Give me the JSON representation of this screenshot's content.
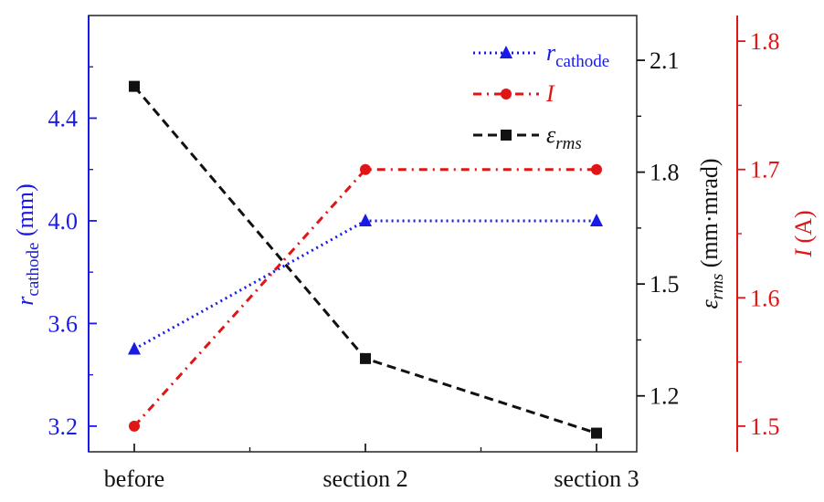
{
  "chart_data": {
    "type": "line",
    "categories": [
      "before",
      "section 2",
      "section 3"
    ],
    "axes": {
      "y_left": {
        "label_main": "r",
        "label_sub": "cathode",
        "label_rest": " (mm)",
        "range": [
          3.1,
          4.8
        ],
        "ticks": [
          3.2,
          3.6,
          4.0,
          4.4
        ],
        "tick_labels": [
          "3.2",
          "3.6",
          "4.0",
          "4.4"
        ],
        "color": "#1a1ae6"
      },
      "y_mid": {
        "label_main": "ε",
        "label_sub": "rms",
        "label_rest": " (mm·mrad)",
        "range": [
          1.05,
          2.22
        ],
        "ticks": [
          1.2,
          1.5,
          1.8,
          2.1
        ],
        "tick_labels": [
          "1.2",
          "1.5",
          "1.8",
          "2.1"
        ],
        "color": "#111111"
      },
      "y_right": {
        "label_main": "I",
        "label_rest": " (A)",
        "range": [
          1.48,
          1.82
        ],
        "ticks": [
          1.5,
          1.6,
          1.7,
          1.8
        ],
        "tick_labels": [
          "1.5",
          "1.6",
          "1.7",
          "1.8"
        ],
        "color": "#e01515"
      }
    },
    "series": [
      {
        "key": "r",
        "name_main": "r",
        "name_sub": "cathode",
        "axis": "y_left",
        "values": [
          3.5,
          4.0,
          4.0
        ],
        "color": "#1a1ae6",
        "marker": "triangle",
        "dash": "dotted"
      },
      {
        "key": "I",
        "name_main": "I",
        "name_sub": "",
        "axis": "y_right",
        "values": [
          1.5,
          1.7,
          1.7
        ],
        "color": "#e01515",
        "marker": "circle",
        "dash": "dashdot"
      },
      {
        "key": "eps",
        "name_main": "ε",
        "name_sub": "rms",
        "axis": "y_mid",
        "values": [
          2.03,
          1.3,
          1.1
        ],
        "color": "#111111",
        "marker": "square",
        "dash": "dashed"
      }
    ]
  }
}
